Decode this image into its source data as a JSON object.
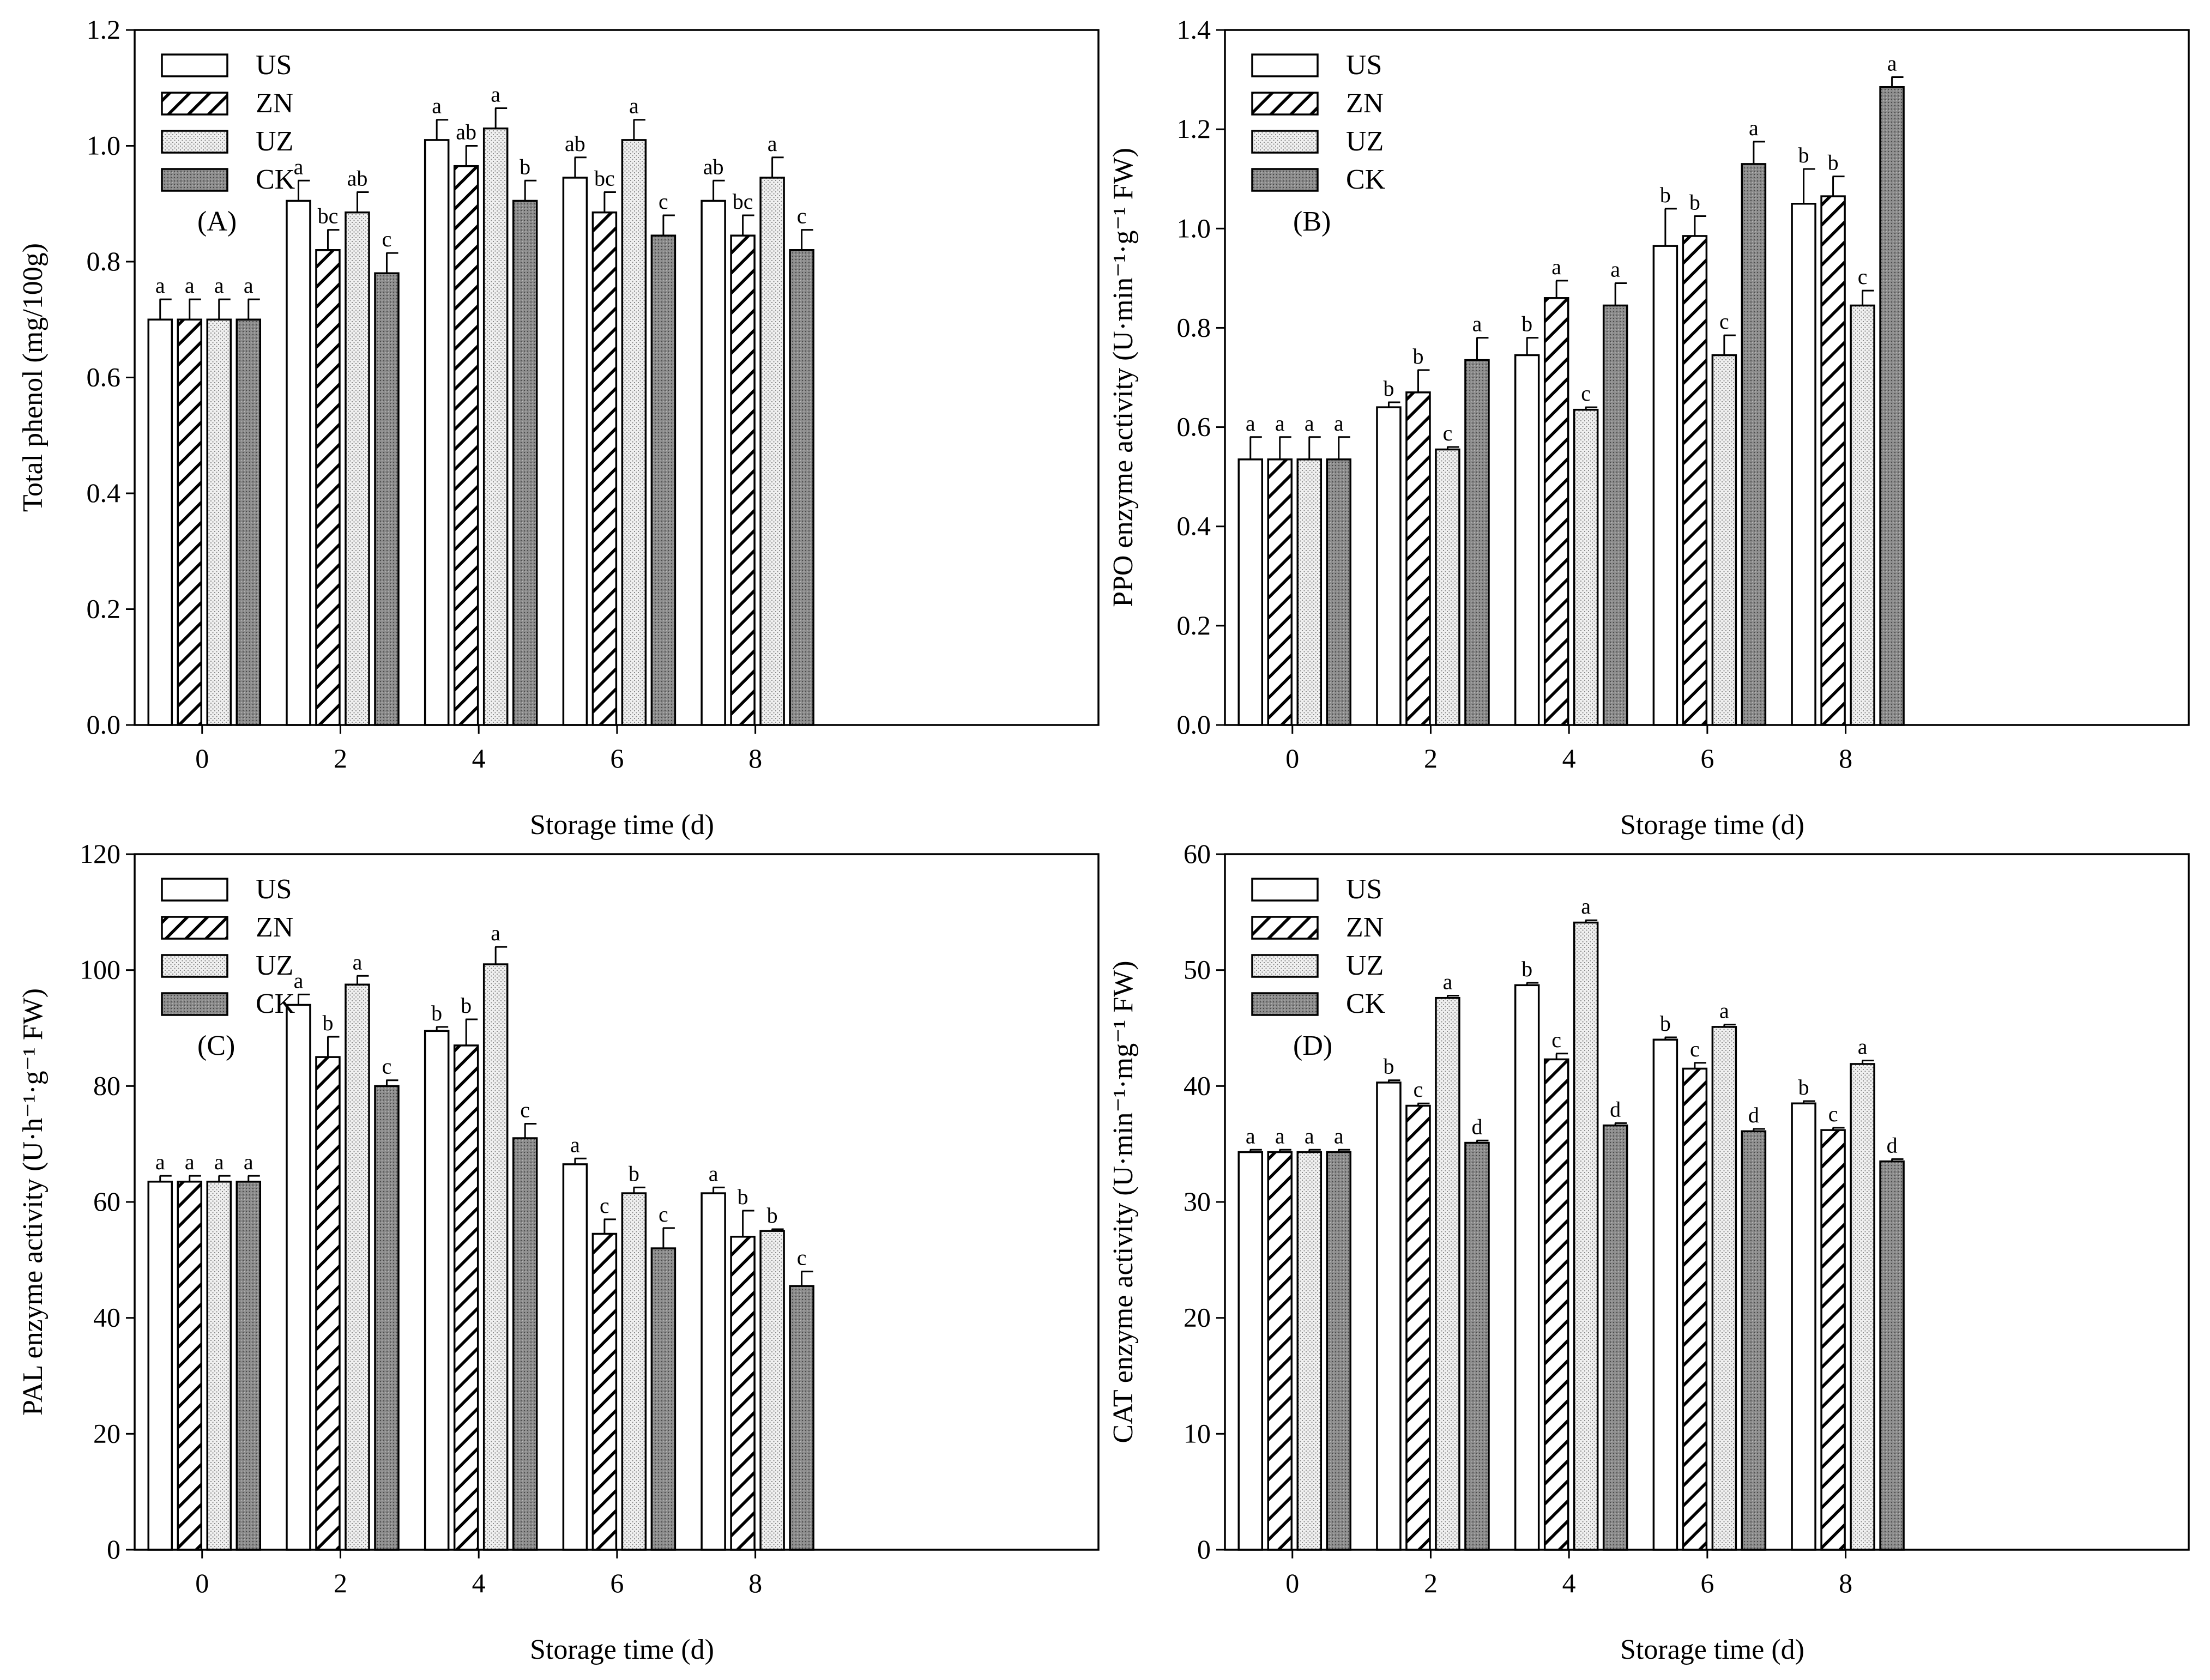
{
  "colors": {
    "US": "#ffffff",
    "ZN": "#ffffff",
    "UZ": "#ebebeb",
    "CK": "#8a8a8a",
    "stroke": "#000000"
  },
  "legend": [
    "US",
    "ZN",
    "UZ",
    "CK"
  ],
  "chart_data": [
    {
      "type": "bar",
      "panel": "(A)",
      "xlabel": "Storage time (d)",
      "ylabel": "Total phenol (mg/100g)",
      "categories": [
        "0",
        "2",
        "4",
        "6",
        "8"
      ],
      "ylim": [
        0,
        1.2
      ],
      "yticks": [
        "0.0",
        "0.2",
        "0.4",
        "0.6",
        "0.8",
        "1.0",
        "1.2"
      ],
      "series": [
        {
          "name": "US",
          "values": [
            0.7,
            0.905,
            1.01,
            0.945,
            0.905
          ],
          "errors": [
            0.035,
            0.035,
            0.035,
            0.035,
            0.035
          ],
          "letters": [
            "a",
            "a",
            "a",
            "ab",
            "ab"
          ]
        },
        {
          "name": "ZN",
          "values": [
            0.7,
            0.82,
            0.965,
            0.885,
            0.845
          ],
          "errors": [
            0.035,
            0.035,
            0.035,
            0.035,
            0.035
          ],
          "letters": [
            "a",
            "bc",
            "ab",
            "bc",
            "bc"
          ]
        },
        {
          "name": "UZ",
          "values": [
            0.7,
            0.885,
            1.03,
            1.01,
            0.945
          ],
          "errors": [
            0.035,
            0.035,
            0.035,
            0.035,
            0.035
          ],
          "letters": [
            "a",
            "ab",
            "a",
            "a",
            "a"
          ]
        },
        {
          "name": "CK",
          "values": [
            0.7,
            0.78,
            0.905,
            0.845,
            0.82
          ],
          "errors": [
            0.035,
            0.035,
            0.035,
            0.035,
            0.035
          ],
          "letters": [
            "a",
            "c",
            "b",
            "c",
            "c"
          ]
        }
      ]
    },
    {
      "type": "bar",
      "panel": "(B)",
      "xlabel": "Storage time (d)",
      "ylabel": "PPO enzyme activity (U·min⁻¹·g⁻¹ FW)",
      "categories": [
        "0",
        "2",
        "4",
        "6",
        "8"
      ],
      "ylim": [
        0,
        1.4
      ],
      "yticks": [
        "0.0",
        "0.2",
        "0.4",
        "0.6",
        "0.8",
        "1.0",
        "1.2",
        "1.4"
      ],
      "series": [
        {
          "name": "US",
          "values": [
            0.535,
            0.64,
            0.745,
            0.965,
            1.05
          ],
          "errors": [
            0.045,
            0.01,
            0.035,
            0.075,
            0.07
          ],
          "letters": [
            "a",
            "b",
            "b",
            "b",
            "b"
          ]
        },
        {
          "name": "ZN",
          "values": [
            0.535,
            0.67,
            0.86,
            0.985,
            1.065
          ],
          "errors": [
            0.045,
            0.045,
            0.035,
            0.04,
            0.04
          ],
          "letters": [
            "a",
            "b",
            "a",
            "b",
            "b"
          ]
        },
        {
          "name": "UZ",
          "values": [
            0.535,
            0.555,
            0.635,
            0.745,
            0.845
          ],
          "errors": [
            0.045,
            0.005,
            0.005,
            0.04,
            0.03
          ],
          "letters": [
            "a",
            "c",
            "c",
            "c",
            "c"
          ]
        },
        {
          "name": "CK",
          "values": [
            0.535,
            0.735,
            0.845,
            1.13,
            1.285
          ],
          "errors": [
            0.045,
            0.045,
            0.045,
            0.045,
            0.02
          ],
          "letters": [
            "a",
            "a",
            "a",
            "a",
            "a"
          ]
        }
      ]
    },
    {
      "type": "bar",
      "panel": "(C)",
      "xlabel": "Storage time (d)",
      "ylabel": "PAL enzyme activity (U·h⁻¹·g⁻¹ FW)",
      "categories": [
        "0",
        "2",
        "4",
        "6",
        "8"
      ],
      "ylim": [
        0,
        120
      ],
      "yticks": [
        "0",
        "20",
        "40",
        "60",
        "80",
        "100",
        "120"
      ],
      "series": [
        {
          "name": "US",
          "values": [
            63.5,
            94,
            89.5,
            66.5,
            61.5
          ],
          "errors": [
            1,
            1.8,
            0.7,
            1,
            1
          ],
          "letters": [
            "a",
            "a",
            "b",
            "a",
            "a"
          ]
        },
        {
          "name": "ZN",
          "values": [
            63.5,
            85,
            87,
            54.5,
            54
          ],
          "errors": [
            1,
            3.5,
            4.5,
            2.5,
            4.5
          ],
          "letters": [
            "a",
            "b",
            "b",
            "c",
            "b"
          ]
        },
        {
          "name": "UZ",
          "values": [
            63.5,
            97.5,
            101,
            61.5,
            55
          ],
          "errors": [
            1,
            1.5,
            3,
            1,
            0.3
          ],
          "letters": [
            "a",
            "a",
            "a",
            "b",
            "b"
          ]
        },
        {
          "name": "CK",
          "values": [
            63.5,
            80,
            71,
            52,
            45.5
          ],
          "errors": [
            1,
            1,
            2.5,
            3.5,
            2.5
          ],
          "letters": [
            "a",
            "c",
            "c",
            "c",
            "c"
          ]
        }
      ]
    },
    {
      "type": "bar",
      "panel": "(D)",
      "xlabel": "Storage time (d)",
      "ylabel": "CAT enzyme activity (U·min⁻¹·mg⁻¹ FW)",
      "categories": [
        "0",
        "2",
        "4",
        "6",
        "8"
      ],
      "ylim": [
        0,
        60
      ],
      "yticks": [
        "0",
        "10",
        "20",
        "30",
        "40",
        "50",
        "60"
      ],
      "series": [
        {
          "name": "US",
          "values": [
            34.3,
            40.3,
            48.7,
            44,
            38.5
          ],
          "errors": [
            0.2,
            0.2,
            0.2,
            0.2,
            0.2
          ],
          "letters": [
            "a",
            "b",
            "b",
            "b",
            "b"
          ]
        },
        {
          "name": "ZN",
          "values": [
            34.3,
            38.3,
            42.3,
            41.5,
            36.2
          ],
          "errors": [
            0.2,
            0.2,
            0.5,
            0.5,
            0.2
          ],
          "letters": [
            "a",
            "c",
            "c",
            "c",
            "c"
          ]
        },
        {
          "name": "UZ",
          "values": [
            34.3,
            47.6,
            54.1,
            45.1,
            41.9
          ],
          "errors": [
            0.2,
            0.2,
            0.2,
            0.2,
            0.3
          ],
          "letters": [
            "a",
            "a",
            "a",
            "a",
            "a"
          ]
        },
        {
          "name": "CK",
          "values": [
            34.3,
            35.1,
            36.6,
            36.1,
            33.5
          ],
          "errors": [
            0.2,
            0.2,
            0.2,
            0.2,
            0.2
          ],
          "letters": [
            "a",
            "d",
            "d",
            "d",
            "d"
          ]
        }
      ]
    }
  ]
}
